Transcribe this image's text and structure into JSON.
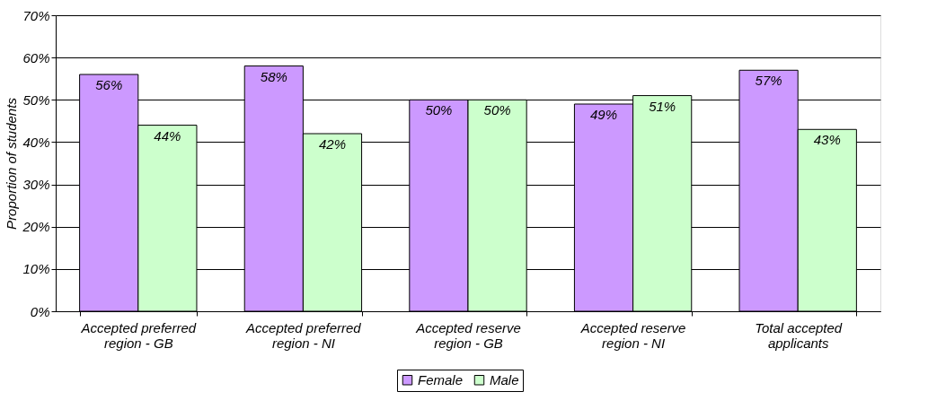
{
  "chart_data": {
    "type": "bar",
    "ylabel": "Proportion of students",
    "categories": [
      "Accepted preferred region - GB",
      "Accepted preferred region - NI",
      "Accepted reserve region - GB",
      "Accepted reserve region - NI",
      "Total accepted applicants"
    ],
    "series": [
      {
        "name": "Female",
        "color": "#cc99ff",
        "values": [
          56,
          58,
          50,
          49,
          57
        ],
        "value_labels": [
          "56%",
          "58%",
          "50%",
          "49%",
          "57%"
        ]
      },
      {
        "name": "Male",
        "color": "#ccffcc",
        "values": [
          44,
          42,
          50,
          51,
          43
        ],
        "value_labels": [
          "44%",
          "42%",
          "50%",
          "51%",
          "43%"
        ]
      }
    ],
    "ylim": [
      0,
      70
    ],
    "yticks": [
      {
        "value": 0,
        "label": "0%"
      },
      {
        "value": 10,
        "label": "10%"
      },
      {
        "value": 20,
        "label": "20%"
      },
      {
        "value": 30,
        "label": "30%"
      },
      {
        "value": 40,
        "label": "40%"
      },
      {
        "value": 50,
        "label": "50%"
      },
      {
        "value": 60,
        "label": "60%"
      },
      {
        "value": 70,
        "label": "70%"
      }
    ],
    "grid": "y",
    "legend": "bottom"
  }
}
